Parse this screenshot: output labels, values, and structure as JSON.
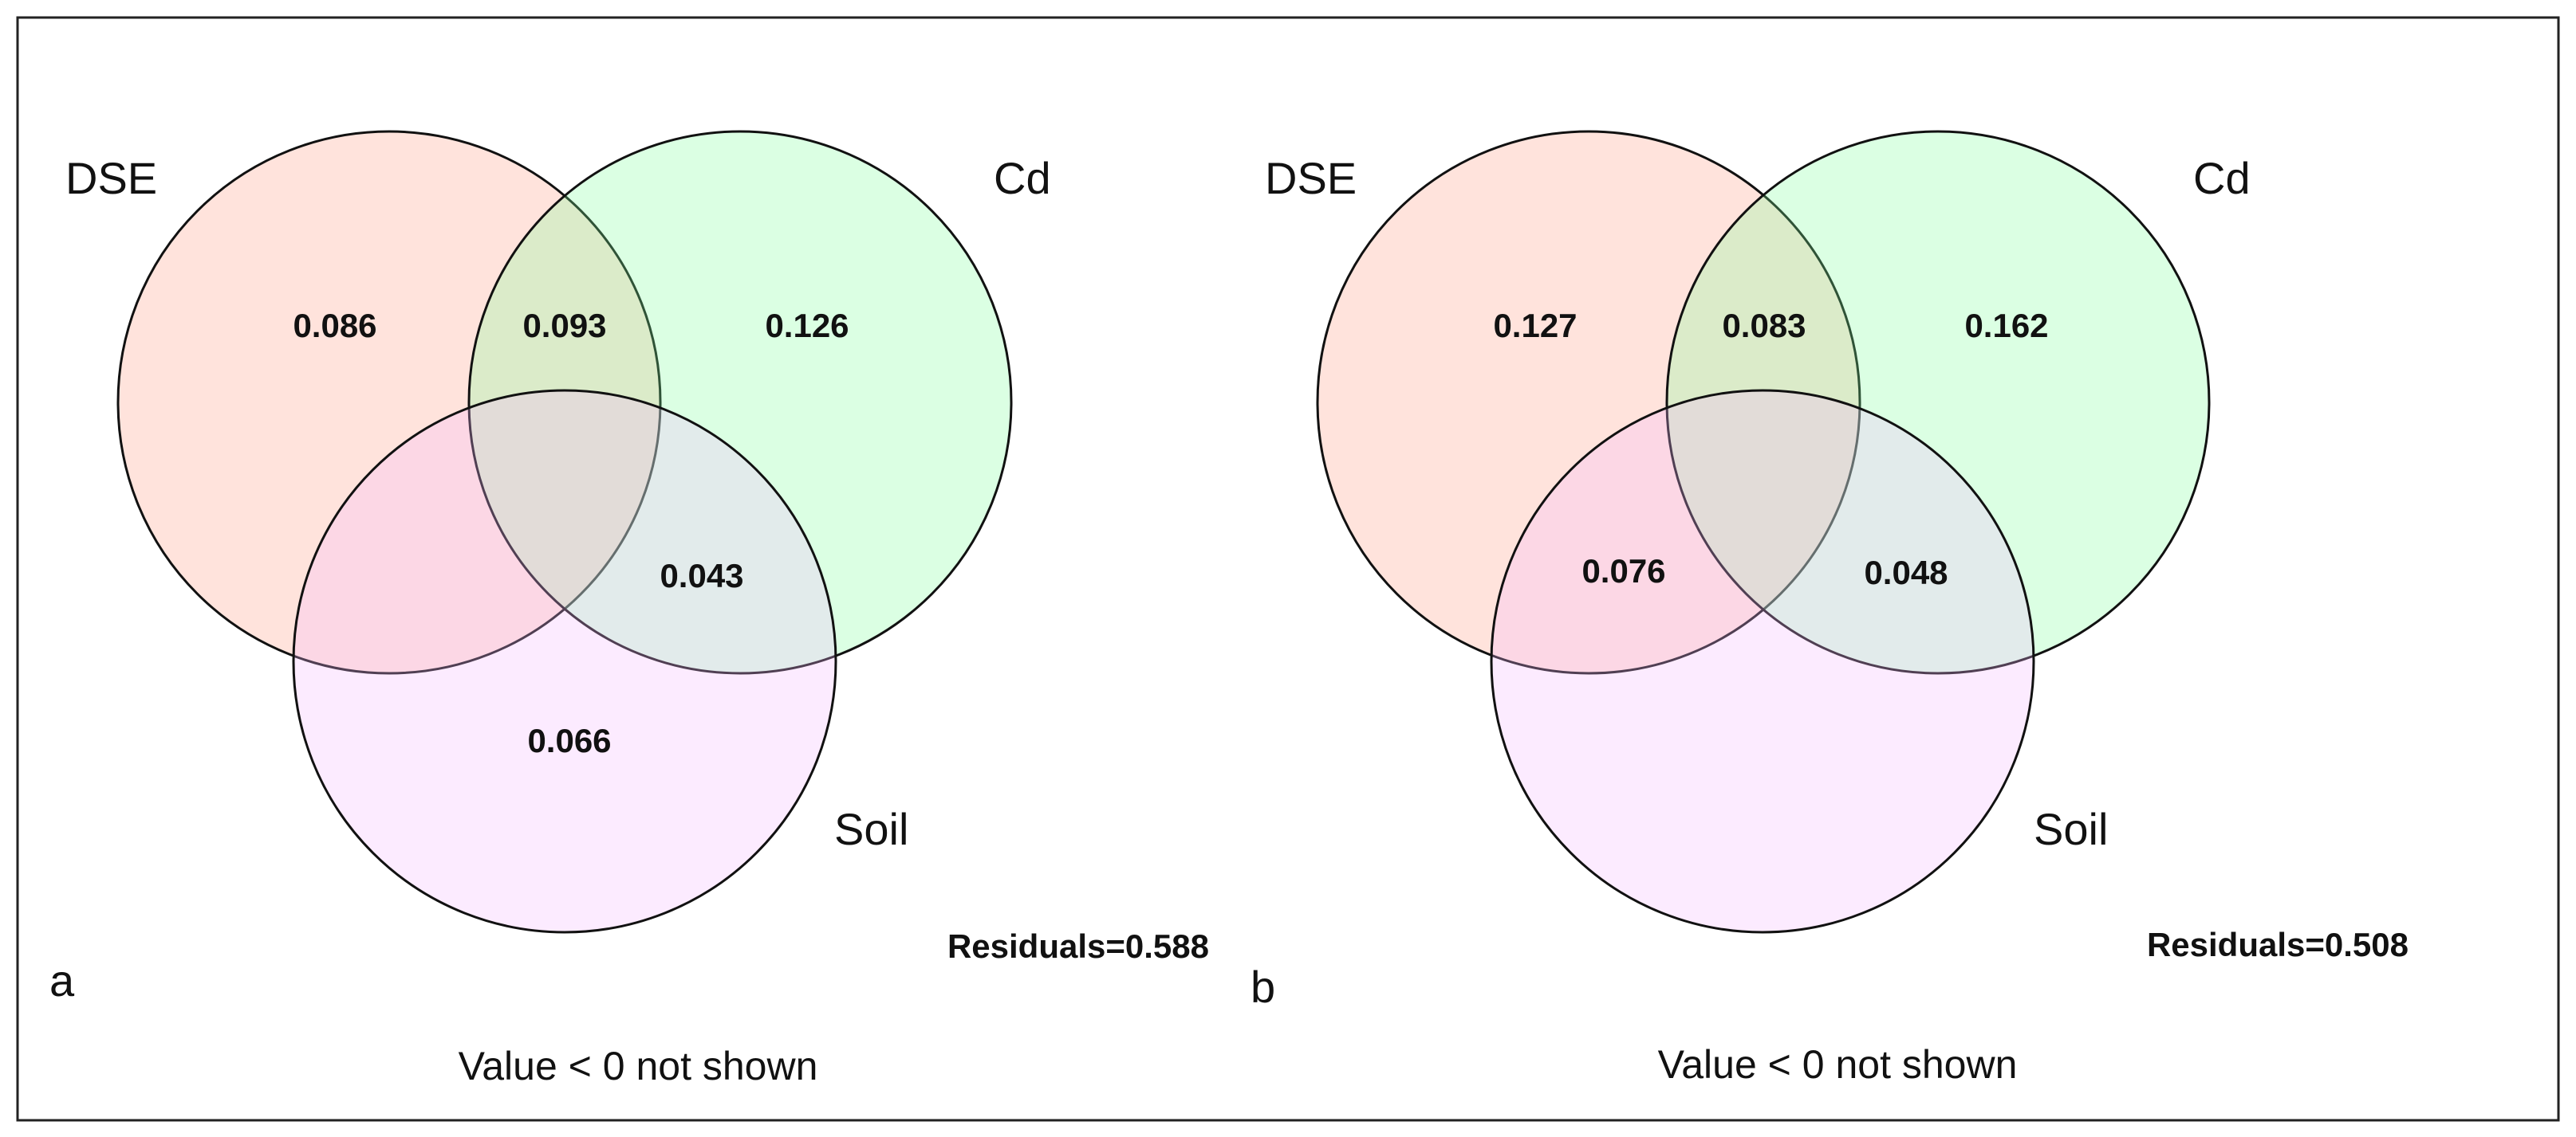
{
  "colors": {
    "dse": "#ff9980",
    "cd": "#7dff9a",
    "soil": "#f3b8ff",
    "background": "#ffffff"
  },
  "chart_data": [
    {
      "type": "venn",
      "panel": "a",
      "sets": [
        "DSE",
        "Cd",
        "Soil"
      ],
      "regions": {
        "dse_only": "0.086",
        "dse_cd": "0.093",
        "cd_only": "0.126",
        "cd_soil": "0.043",
        "soil_only": "0.066"
      },
      "residuals": "Residuals=0.588",
      "note": "Value < 0 not shown"
    },
    {
      "type": "venn",
      "panel": "b",
      "sets": [
        "DSE",
        "Cd",
        "Soil"
      ],
      "regions": {
        "dse_only": "0.127",
        "dse_cd": "0.083",
        "cd_only": "0.162",
        "dse_soil": "0.076",
        "cd_soil": "0.048"
      },
      "residuals": "Residuals=0.508",
      "note": "Value < 0 not shown"
    }
  ]
}
